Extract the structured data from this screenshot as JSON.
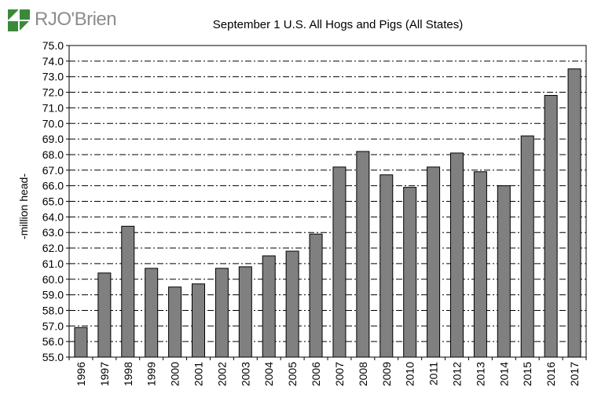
{
  "brand": {
    "name": "RJO'Brien",
    "mark_color": "#3a8a3a"
  },
  "chart_data": {
    "type": "bar",
    "title": "September 1 U.S. All Hogs and Pigs (All States)",
    "xlabel": "",
    "ylabel": "-million head-",
    "categories": [
      "1996",
      "1997",
      "1998",
      "1999",
      "2000",
      "2001",
      "2002",
      "2003",
      "2004",
      "2005",
      "2006",
      "2007",
      "2008",
      "2009",
      "2010",
      "2011",
      "2012",
      "2013",
      "2014",
      "2015",
      "2016",
      "2017"
    ],
    "values": [
      56.9,
      60.4,
      63.4,
      60.7,
      59.5,
      59.7,
      60.7,
      60.8,
      61.5,
      61.8,
      62.9,
      67.2,
      68.2,
      66.7,
      65.9,
      67.2,
      68.1,
      66.9,
      66.0,
      69.2,
      71.8,
      73.5
    ],
    "ylim": [
      55.0,
      75.0
    ],
    "ytick_step": 1.0,
    "grid": true,
    "bar_color": "#808080"
  }
}
